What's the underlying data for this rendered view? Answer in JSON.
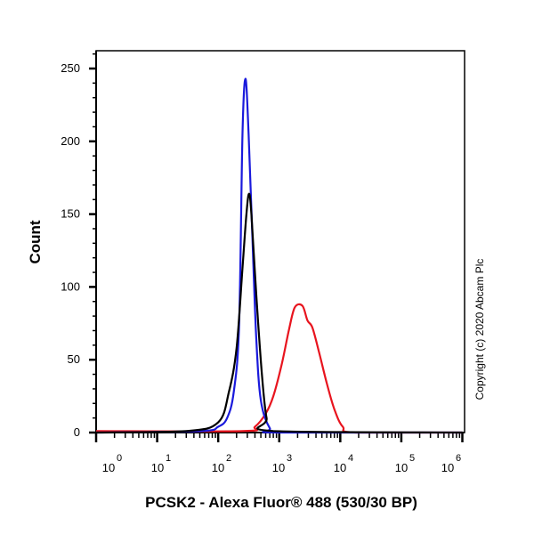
{
  "chart_data": {
    "type": "line",
    "title": "",
    "xlabel": "PCSK2 - Alexa Fluor® 488 (530/30 BP)",
    "ylabel": "Count",
    "xscale": "log",
    "xlim": [
      1,
      1000000
    ],
    "ylim": [
      0,
      262
    ],
    "x_ticks": [
      {
        "base": "10",
        "exp": "0"
      },
      {
        "base": "10",
        "exp": "1"
      },
      {
        "base": "10",
        "exp": "2"
      },
      {
        "base": "10",
        "exp": "3"
      },
      {
        "base": "10",
        "exp": "4"
      },
      {
        "base": "10",
        "exp": "5"
      },
      {
        "base": "10",
        "exp": "6"
      }
    ],
    "y_ticks": [
      "0",
      "50",
      "100",
      "150",
      "200",
      "250"
    ],
    "grid": false,
    "legend": null,
    "annotation": "Copyright (c) 2020 Abcam Plc",
    "series": [
      {
        "name": "blue",
        "color": "#1a1adc",
        "x": [
          1,
          50,
          100,
          140,
          180,
          220,
          250,
          280,
          315,
          360,
          420,
          500,
          700,
          1000,
          1000000
        ],
        "y": [
          0,
          1,
          4,
          10,
          28,
          74,
          205,
          243,
          205,
          139,
          65,
          22,
          3,
          0,
          0
        ]
      },
      {
        "name": "black",
        "color": "#000000",
        "x": [
          1,
          30,
          100,
          150,
          200,
          250,
          290,
          320,
          350,
          420,
          520,
          620,
          800,
          1000000
        ],
        "y": [
          0,
          1,
          7,
          28,
          58,
          113,
          150,
          164,
          150,
          95,
          40,
          10,
          1,
          0
        ]
      },
      {
        "name": "red",
        "color": "#e8141e",
        "x": [
          1,
          250,
          400,
          600,
          800,
          1100,
          1450,
          1800,
          2400,
          2900,
          3500,
          4500,
          6000,
          8000,
          11000,
          18000,
          1000000
        ],
        "y": [
          1,
          1,
          4,
          13,
          25,
          47,
          71,
          86,
          87,
          77,
          72,
          55,
          34,
          16,
          4,
          0,
          0
        ]
      }
    ]
  },
  "labels": {
    "ylabel": "Count",
    "xlabel": "PCSK2 - Alexa Fluor® 488 (530/30 BP)",
    "copyright": "Copyright (c) 2020 Abcam Plc"
  }
}
